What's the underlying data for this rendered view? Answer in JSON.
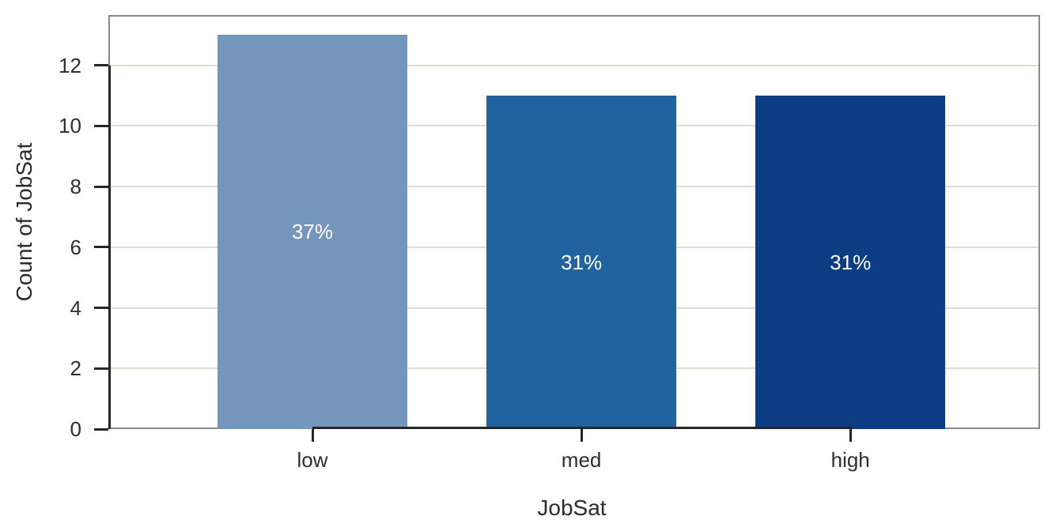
{
  "chart_data": {
    "type": "bar",
    "title": "",
    "categories": [
      "low",
      "med",
      "high"
    ],
    "values": [
      13,
      11,
      11
    ],
    "bar_labels": [
      "37%",
      "31%",
      "31%"
    ],
    "bar_colors": [
      "#7495bc",
      "#21639e",
      "#0c3c82"
    ],
    "xlabel": "JobSat",
    "ylabel": "Count of JobSat",
    "yticks": [
      0,
      2,
      4,
      6,
      8,
      10,
      12
    ],
    "ylim": [
      0,
      13.66
    ],
    "grid": "horizontal",
    "legend": "none",
    "colors": {
      "background": "#ffffff",
      "gridline": "#e2dccf",
      "frame": "#8a8a8a",
      "axis": "#262626",
      "tick_label": "#2e2e2e",
      "axis_title": "#2b2b2b",
      "bar_label": "#ffffff"
    }
  }
}
